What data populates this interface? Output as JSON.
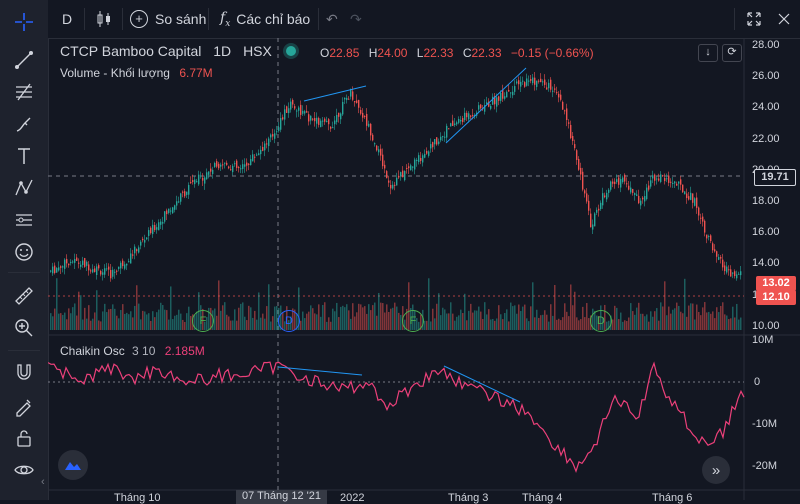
{
  "toolbar": {
    "interval": "D",
    "compare_label": "So sánh",
    "indicators_label": "Các chỉ báo"
  },
  "legend": {
    "title": "CTCP Bamboo Capital",
    "interval": "1D",
    "exchange": "HSX",
    "o_label": "O",
    "o_value": "22.85",
    "h_label": "H",
    "h_value": "24.00",
    "l_label": "L",
    "l_value": "22.33",
    "c_label": "C",
    "c_value": "22.33",
    "change": "−0.15 (−0.66%)",
    "volume_label": "Volume - Khối lượng",
    "volume_value": "6.77M",
    "osc_label": "Chaikin Osc",
    "osc_params": "3 10",
    "osc_value": "2.185M"
  },
  "price_axis": [
    "28.00",
    "26.00",
    "24.00",
    "22.00",
    "20.00",
    "18.00",
    "16.00",
    "14.00",
    "12.00",
    "10.00"
  ],
  "osc_axis": [
    "10M",
    "0",
    "-10M",
    "-20M"
  ],
  "price_tags": {
    "crosshair": "19.71",
    "last": "13.02",
    "prev": "12.10"
  },
  "time_axis": [
    "Tháng 10",
    "07 Tháng 12 '21",
    "2022",
    "Tháng 3",
    "Tháng 4",
    "Tháng 6"
  ],
  "markers": [
    "F",
    "D",
    "F",
    "D"
  ],
  "colors": {
    "background": "#131722",
    "up": "#26a69a",
    "down": "#ef5350",
    "oscillator": "#ec407a",
    "trendline": "#2196f3"
  },
  "chart_data": {
    "type": "candlestick",
    "series": [
      {
        "name": "CTCP Bamboo Capital",
        "open": 22.85,
        "high": 24.0,
        "low": 22.33,
        "close": 22.33
      }
    ]
  }
}
